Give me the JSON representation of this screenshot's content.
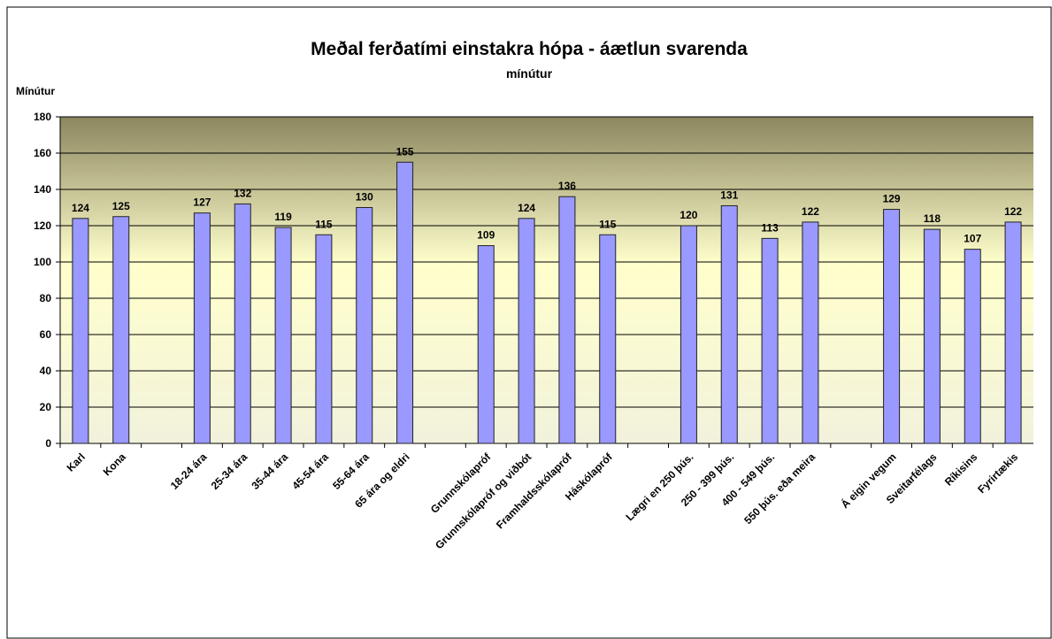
{
  "chart_data": {
    "type": "bar",
    "title": "Meðal ferðatími einstakra hópa - áætlun svarenda",
    "subtitle": "mínútur",
    "y_label": "Mínútur",
    "categories": [
      "Karl",
      "Kona",
      null,
      "18-24 ára",
      "25-34 ára",
      "35-44 ára",
      "45-54 ára",
      "55-64 ára",
      "65 ára og eldri",
      null,
      "Grunnskólapróf",
      "Grunnskólapróf og viðbót",
      "Framhaldsskólapróf",
      "Háskólapróf",
      null,
      "Lægri en 250 þús.",
      "250 - 399 þús.",
      "400 - 549 þús.",
      "550 þús. eða meira",
      null,
      "Á eigin vegum",
      "Sveitarfélags",
      "Ríkisins",
      "Fyrirtækis"
    ],
    "values": [
      124,
      125,
      null,
      127,
      132,
      119,
      115,
      130,
      155,
      null,
      109,
      124,
      136,
      115,
      null,
      120,
      131,
      113,
      122,
      null,
      129,
      118,
      107,
      122
    ],
    "color": "#9999ff",
    "ylim": [
      0,
      180
    ],
    "yticks": [
      0,
      20,
      40,
      60,
      80,
      100,
      120,
      140,
      160,
      180
    ],
    "grid": true
  }
}
